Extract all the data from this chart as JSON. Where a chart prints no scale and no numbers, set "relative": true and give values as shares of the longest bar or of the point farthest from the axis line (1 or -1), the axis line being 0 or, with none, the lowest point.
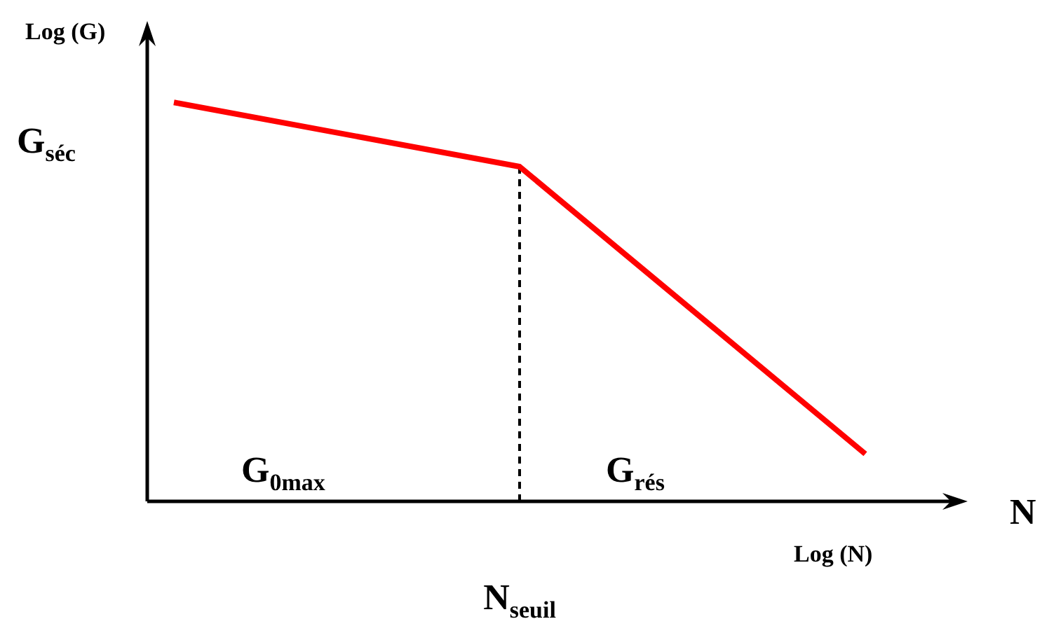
{
  "chart_data": {
    "type": "line",
    "ylabel": "Log (G)",
    "xlabel": "Log (N)",
    "categories": [
      null,
      null,
      null
    ],
    "series": [
      {
        "color": "#ff0000",
        "values": [
          1,
          0.839,
          0.119
        ]
      }
    ],
    "relative": true,
    "marker": "none",
    "ref_lines": [
      {
        "axis": "x",
        "label": "N$_{seuil}$",
        "color": "#000000",
        "line_style": "dashed"
      }
    ],
    "annotations": [
      "G$_{séc}$",
      "G$_{0max}$",
      "G$_{rés}$",
      "N"
    ]
  }
}
